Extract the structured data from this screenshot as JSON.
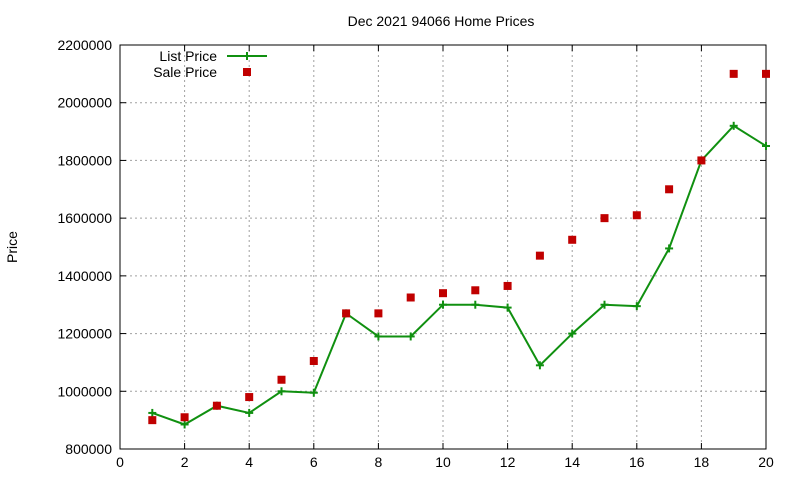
{
  "chart_data": {
    "type": "line",
    "title": "Dec 2021 94066 Home Prices",
    "xlabel": "",
    "ylabel": "Price",
    "xlim": [
      0,
      20
    ],
    "ylim": [
      800000,
      2200000
    ],
    "x_ticks": [
      0,
      2,
      4,
      6,
      8,
      10,
      12,
      14,
      16,
      18,
      20
    ],
    "y_ticks": [
      800000,
      1000000,
      1200000,
      1400000,
      1600000,
      1800000,
      2000000,
      2200000
    ],
    "grid": true,
    "legend_position": "top-left",
    "series": [
      {
        "name": "List Price",
        "style": "line-plus",
        "color": "#109010",
        "x": [
          1,
          2,
          3,
          4,
          5,
          6,
          7,
          8,
          9,
          10,
          11,
          12,
          13,
          14,
          15,
          16,
          17,
          18,
          19,
          20
        ],
        "values": [
          925000,
          885000,
          950000,
          925000,
          1000000,
          995000,
          1270000,
          1190000,
          1190000,
          1300000,
          1300000,
          1290000,
          1090000,
          1200000,
          1300000,
          1295000,
          1495000,
          1800000,
          1920000,
          1850000
        ]
      },
      {
        "name": "Sale Price",
        "style": "square-points",
        "color": "#c00000",
        "x": [
          1,
          2,
          3,
          4,
          5,
          6,
          7,
          8,
          9,
          10,
          11,
          12,
          13,
          14,
          15,
          16,
          17,
          18,
          19,
          20
        ],
        "values": [
          900000,
          910000,
          950000,
          980000,
          1040000,
          1105000,
          1270000,
          1270000,
          1325000,
          1340000,
          1350000,
          1365000,
          1470000,
          1525000,
          1600000,
          1610000,
          1700000,
          1800000,
          2100000,
          2100000
        ]
      }
    ]
  }
}
